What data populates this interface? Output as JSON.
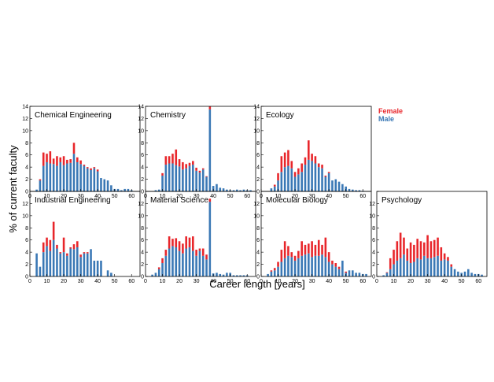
{
  "figure": {
    "xlabel": "Career length [years]",
    "ylabel": "% of current faculty",
    "legend": [
      {
        "name": "Female",
        "color": "#e8262b"
      },
      {
        "name": "Male",
        "color": "#3a78b5"
      }
    ]
  },
  "chart_data": [
    {
      "type": "bar",
      "stacked": true,
      "title": "Chemical Engineering",
      "xlim": [
        0,
        65
      ],
      "ylim": [
        0,
        14
      ],
      "x": [
        2,
        4,
        6,
        8,
        10,
        12,
        14,
        16,
        18,
        20,
        22,
        24,
        26,
        28,
        30,
        32,
        34,
        36,
        38,
        40,
        42,
        44,
        46,
        48,
        50,
        52,
        54,
        56,
        58,
        60
      ],
      "series": [
        {
          "name": "Male",
          "values": [
            0,
            0.3,
            1.8,
            4.2,
            4.8,
            4.6,
            4.5,
            4.2,
            4.8,
            4.3,
            4.6,
            4.7,
            6.2,
            4.8,
            4.5,
            4.2,
            3.8,
            3.5,
            3.8,
            3.3,
            2.2,
            2.0,
            1.8,
            1.0,
            0.4,
            0.4,
            0.2,
            0.4,
            0.4,
            0.2
          ]
        },
        {
          "name": "Female",
          "values": [
            0,
            0,
            0.2,
            2.2,
            1.4,
            2.0,
            0.9,
            1.6,
            0.8,
            1.5,
            0.6,
            0.6,
            1.8,
            0.8,
            0.6,
            0.2,
            0.2,
            0.3,
            0.2,
            0.3,
            0,
            0,
            0,
            0,
            0,
            0,
            0,
            0,
            0,
            0
          ]
        }
      ]
    },
    {
      "type": "bar",
      "stacked": true,
      "title": "Chemistry",
      "xlim": [
        0,
        65
      ],
      "ylim": [
        0,
        14
      ],
      "x": [
        2,
        4,
        6,
        8,
        10,
        12,
        14,
        16,
        18,
        20,
        22,
        24,
        26,
        28,
        30,
        32,
        34,
        36,
        38,
        40,
        42,
        44,
        46,
        48,
        50,
        52,
        54,
        56,
        58,
        60,
        62
      ],
      "series": [
        {
          "name": "Male",
          "values": [
            0,
            0,
            0.2,
            0.3,
            2.6,
            4.4,
            4.6,
            4.6,
            4.3,
            4.1,
            3.6,
            3.8,
            4.2,
            4.4,
            3.4,
            3.1,
            3.6,
            2.4,
            13.5,
            0.9,
            1.2,
            0.6,
            0.5,
            0.3,
            0.2,
            0.2,
            0.3,
            0.2,
            0.3,
            0.2,
            0.2
          ]
        },
        {
          "name": "Female",
          "values": [
            0,
            0,
            0,
            0,
            0.4,
            1.4,
            1.2,
            1.6,
            2.6,
            1.2,
            1.2,
            0.7,
            0.5,
            0.6,
            0.5,
            0.3,
            0.2,
            0.1,
            0.5,
            0,
            0,
            0,
            0,
            0,
            0,
            0,
            0,
            0,
            0,
            0,
            0
          ]
        }
      ]
    },
    {
      "type": "bar",
      "stacked": true,
      "title": "Ecology",
      "xlim": [
        0,
        65
      ],
      "ylim": [
        0,
        14
      ],
      "x": [
        2,
        4,
        6,
        8,
        10,
        12,
        14,
        16,
        18,
        20,
        22,
        24,
        26,
        28,
        30,
        32,
        34,
        36,
        38,
        40,
        42,
        44,
        46,
        48,
        50,
        52,
        54,
        56,
        58,
        60
      ],
      "series": [
        {
          "name": "Male",
          "values": [
            0,
            0,
            0.5,
            0.8,
            1.8,
            3.2,
            4.0,
            4.2,
            3.8,
            2.4,
            2.8,
            3.2,
            4.4,
            5.2,
            5.0,
            4.6,
            4.0,
            3.8,
            2.4,
            3.0,
            1.8,
            2.0,
            1.6,
            1.2,
            0.8,
            0.4,
            0.3,
            0.2,
            0.2,
            0.1
          ]
        },
        {
          "name": "Female",
          "values": [
            0,
            0,
            0,
            0.3,
            1.2,
            2.6,
            2.4,
            2.6,
            1.2,
            0.8,
            1.0,
            1.4,
            1.2,
            3.2,
            1.2,
            1.2,
            0.6,
            0.6,
            0.2,
            0.2,
            0,
            0,
            0,
            0,
            0,
            0,
            0,
            0,
            0,
            0
          ]
        }
      ]
    },
    {
      "type": "bar",
      "stacked": true,
      "title": "Industrial Engineering",
      "xlim": [
        0,
        65
      ],
      "ylim": [
        0,
        14
      ],
      "x": [
        2,
        4,
        6,
        8,
        10,
        12,
        14,
        16,
        18,
        20,
        22,
        24,
        26,
        28,
        30,
        32,
        34,
        36,
        38,
        40,
        42,
        44,
        46,
        48,
        50,
        52,
        54,
        56,
        58,
        60
      ],
      "series": [
        {
          "name": "Male",
          "values": [
            0,
            3.8,
            1.6,
            4.0,
            5.0,
            4.2,
            6.0,
            4.6,
            3.8,
            4.0,
            3.4,
            4.6,
            4.5,
            4.8,
            3.2,
            3.8,
            3.8,
            4.5,
            2.6,
            2.6,
            2.6,
            0,
            1.0,
            0.6,
            0,
            0,
            0,
            0,
            0,
            0
          ]
        },
        {
          "name": "Female",
          "values": [
            0,
            0,
            0,
            1.6,
            1.4,
            1.8,
            3.0,
            0.6,
            0.2,
            2.4,
            0.4,
            0.2,
            0.8,
            1.0,
            0.4,
            0.2,
            0.2,
            0,
            0,
            0,
            0,
            0,
            0,
            0,
            0,
            0,
            0,
            0,
            0,
            0
          ]
        }
      ]
    },
    {
      "type": "bar",
      "stacked": true,
      "title": "Material Science",
      "xlim": [
        0,
        65
      ],
      "ylim": [
        0,
        14
      ],
      "x": [
        2,
        4,
        6,
        8,
        10,
        12,
        14,
        16,
        18,
        20,
        22,
        24,
        26,
        28,
        30,
        32,
        34,
        36,
        38,
        40,
        42,
        44,
        46,
        48,
        50,
        52,
        54,
        56,
        58,
        60
      ],
      "series": [
        {
          "name": "Male",
          "values": [
            0,
            0.3,
            0.6,
            1.2,
            2.2,
            3.4,
            4.6,
            5.0,
            4.8,
            4.2,
            3.8,
            4.6,
            4.8,
            4.2,
            3.4,
            4.2,
            3.4,
            2.8,
            12.3,
            0.5,
            0.6,
            0.4,
            0.3,
            0.6,
            0.6,
            0.2,
            0.2,
            0.2,
            0.2,
            0.2
          ]
        },
        {
          "name": "Female",
          "values": [
            0,
            0,
            0,
            0.3,
            0.8,
            1.0,
            2.0,
            1.2,
            1.5,
            1.6,
            1.6,
            2.0,
            1.6,
            2.4,
            1.0,
            0.4,
            1.2,
            0.8,
            0.5,
            0,
            0,
            0,
            0,
            0,
            0,
            0,
            0,
            0,
            0,
            0
          ]
        }
      ]
    },
    {
      "type": "bar",
      "stacked": true,
      "title": "Molecular Biology",
      "xlim": [
        0,
        65
      ],
      "ylim": [
        0,
        14
      ],
      "x": [
        2,
        4,
        6,
        8,
        10,
        12,
        14,
        16,
        18,
        20,
        22,
        24,
        26,
        28,
        30,
        32,
        34,
        36,
        38,
        40,
        42,
        44,
        46,
        48,
        50,
        52,
        54,
        56,
        58,
        60,
        62
      ],
      "series": [
        {
          "name": "Male",
          "values": [
            0,
            0.4,
            0.8,
            1.0,
            1.6,
            2.4,
            3.0,
            3.4,
            3.2,
            2.6,
            3.0,
            3.4,
            3.6,
            3.8,
            3.2,
            3.4,
            3.4,
            3.6,
            3.2,
            2.4,
            2.0,
            1.6,
            1.2,
            2.6,
            0.6,
            1.0,
            1.0,
            0.6,
            0.6,
            0.4,
            0.4
          ]
        },
        {
          "name": "Female",
          "values": [
            0,
            0,
            0.2,
            0.4,
            0.8,
            2.0,
            2.8,
            1.6,
            0.8,
            0.8,
            1.2,
            2.4,
            1.6,
            1.6,
            2.6,
            1.8,
            2.6,
            1.6,
            3.2,
            1.6,
            0.6,
            0.6,
            0.4,
            0,
            0.2,
            0,
            0,
            0,
            0,
            0,
            0
          ]
        }
      ]
    },
    {
      "type": "bar",
      "stacked": true,
      "title": "Psychology",
      "xlim": [
        0,
        65
      ],
      "ylim": [
        0,
        14
      ],
      "x": [
        2,
        4,
        6,
        8,
        10,
        12,
        14,
        16,
        18,
        20,
        22,
        24,
        26,
        28,
        30,
        32,
        34,
        36,
        38,
        40,
        42,
        44,
        46,
        48,
        50,
        52,
        54,
        56,
        58,
        60,
        62
      ],
      "series": [
        {
          "name": "Male",
          "values": [
            0,
            0.2,
            0.6,
            1.2,
            2.0,
            2.6,
            3.0,
            3.6,
            2.6,
            2.2,
            2.4,
            3.0,
            2.8,
            3.4,
            3.0,
            3.0,
            3.2,
            3.4,
            2.6,
            2.8,
            2.6,
            1.6,
            1.2,
            0.8,
            0.6,
            0.8,
            1.2,
            0.6,
            0.4,
            0.4,
            0.3
          ]
        },
        {
          "name": "Female",
          "values": [
            0,
            0,
            0.1,
            1.8,
            2.4,
            3.2,
            4.2,
            2.8,
            2.0,
            3.4,
            2.8,
            3.2,
            3.0,
            2.2,
            3.8,
            2.8,
            2.8,
            3.0,
            2.2,
            1.0,
            0.6,
            0.4,
            0,
            0,
            0,
            0,
            0,
            0,
            0,
            0,
            0
          ]
        }
      ]
    }
  ]
}
